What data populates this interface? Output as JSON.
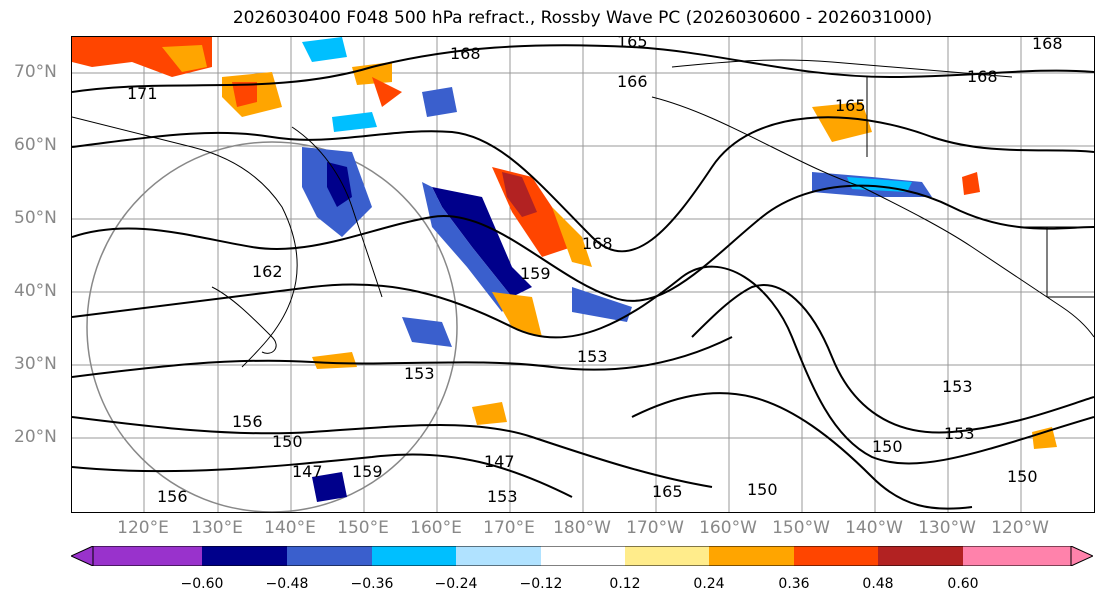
{
  "title": "2026030400 F048 500 hPa refract., Rossby Wave PC (2026030600 - 2026031000)",
  "lat_labels": [
    "70°N",
    "60°N",
    "50°N",
    "40°N",
    "30°N",
    "20°N"
  ],
  "lon_labels": [
    "120°E",
    "130°E",
    "140°E",
    "150°E",
    "160°E",
    "170°E",
    "180°W",
    "170°W",
    "160°W",
    "150°W",
    "140°W",
    "130°W",
    "120°W"
  ],
  "contour_labels": [
    "165",
    "168",
    "171",
    "166",
    "168",
    "165",
    "168",
    "162",
    "168",
    "159",
    "153",
    "156",
    "150",
    "147",
    "147",
    "153",
    "153",
    "150",
    "153",
    "150",
    "153",
    "150",
    "165",
    "159",
    "156"
  ],
  "colorbar": {
    "ticks": [
      "−0.60",
      "−0.48",
      "−0.36",
      "−0.24",
      "−0.12",
      "0.12",
      "0.24",
      "0.36",
      "0.48",
      "0.60"
    ],
    "colors": [
      "#9932cc",
      "#00008b",
      "#3a5fcd",
      "#00bfff",
      "#b0e2ff",
      "#ffffff",
      "#ffec8b",
      "#ffa500",
      "#ff4500",
      "#b22222",
      "#ff82ab"
    ]
  },
  "colors": {
    "gridline": "#999999",
    "coast": "#000000",
    "label_gray": "#888888"
  }
}
